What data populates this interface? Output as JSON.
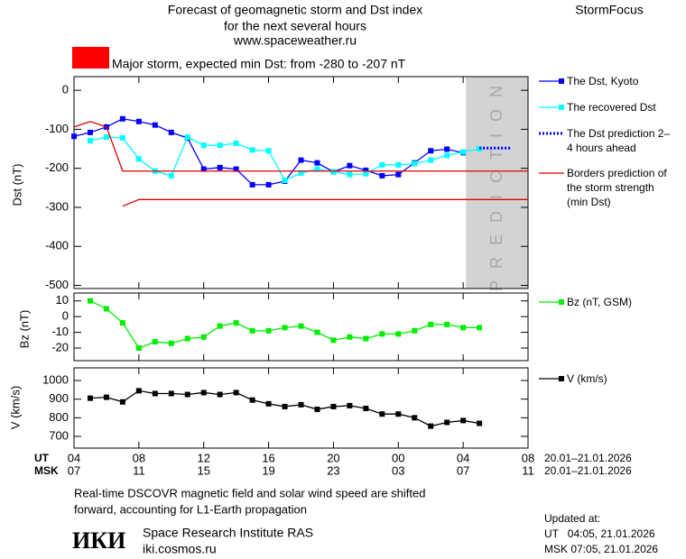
{
  "chart_data": [
    {
      "type": "line",
      "title": [
        "Forecast of geomagnetic storm and Dst index",
        "for the next several hours",
        "www.spaceweather.ru"
      ],
      "brand": "StormFocus",
      "annotation": "Major storm, expected min Dst: from -280 to -207 nT",
      "annotation_color": "#ff0000",
      "prediction_label": "PREDICTION",
      "y_label": "Dst (nT)",
      "ylim": [
        -508,
        35
      ],
      "yticks": [
        -500,
        -400,
        -300,
        -200,
        -100,
        0
      ],
      "series": [
        {
          "name": "The Dst, Kyoto",
          "color": "#0000ff",
          "marker": "square",
          "values": [
            -118,
            -108,
            -94,
            -73,
            -80,
            -89,
            -108,
            -122,
            -202,
            -198,
            -202,
            -242,
            -242,
            -233,
            -179,
            -186,
            -209,
            -193,
            -205,
            -219,
            -216,
            -186,
            -155,
            -151,
            -160,
            null,
            null,
            null,
            null
          ]
        },
        {
          "name": "The recovered Dst",
          "color": "#00ffff",
          "marker": "square",
          "values": [
            null,
            -129,
            -120,
            -122,
            -176,
            -207,
            -219,
            -120,
            -141,
            -141,
            -136,
            -153,
            -155,
            -231,
            -212,
            -202,
            -209,
            -216,
            -214,
            -191,
            -191,
            -188,
            -179,
            -167,
            -158,
            -150,
            null,
            null,
            null
          ]
        },
        {
          "name": "The Dst prediction 2–4 hours ahead",
          "color": "#0000ff",
          "line_style": "dotted",
          "values": [
            null,
            null,
            null,
            null,
            null,
            null,
            null,
            null,
            null,
            null,
            null,
            null,
            null,
            null,
            null,
            null,
            null,
            null,
            null,
            null,
            null,
            null,
            null,
            null,
            null,
            -148,
            -148,
            -148,
            null
          ]
        },
        {
          "name": "Borders prediction of the storm strength (min Dst)",
          "color": "#e00000",
          "values": [
            -94,
            -80,
            -94,
            -207,
            -207,
            -207,
            -207,
            -207,
            -207,
            -207,
            -207,
            -207,
            -207,
            -207,
            -207,
            -207,
            -207,
            -207,
            -207,
            -207,
            -207,
            -207,
            -207,
            -207,
            -207,
            -207,
            -207,
            -207,
            -207
          ]
        },
        {
          "color": "#e00000",
          "values": [
            null,
            null,
            null,
            -297,
            -280,
            -280,
            -280,
            -280,
            -280,
            -280,
            -280,
            -280,
            -280,
            -280,
            -280,
            -280,
            -280,
            -280,
            -280,
            -280,
            -280,
            -280,
            -280,
            -280,
            -280,
            -280,
            -280,
            -280,
            -280
          ]
        }
      ]
    },
    {
      "type": "line",
      "y_label": "Bz (nT)",
      "ylim": [
        -28,
        15
      ],
      "yticks": [
        -20,
        -10,
        0,
        10
      ],
      "series": [
        {
          "name": "Bz (nT, GSM)",
          "color": "#00ee00",
          "marker": "square",
          "values": [
            null,
            10,
            5,
            -4,
            -20,
            -16,
            -17,
            -14,
            -13,
            -6,
            -4,
            -9,
            -9,
            -7,
            -6,
            -10,
            -15,
            -13,
            -14,
            -11,
            -11,
            -9,
            -5,
            -5,
            -7,
            -7,
            null,
            null,
            null
          ]
        }
      ]
    },
    {
      "type": "line",
      "y_label": "V (km/s)",
      "ylim": [
        637,
        1068
      ],
      "yticks": [
        700,
        800,
        900,
        1000
      ],
      "series": [
        {
          "name": "V (km/s)",
          "color": "#000000",
          "marker": "square",
          "values": [
            null,
            905,
            910,
            885,
            945,
            930,
            930,
            925,
            935,
            925,
            935,
            895,
            875,
            860,
            870,
            845,
            860,
            865,
            850,
            820,
            820,
            800,
            755,
            775,
            785,
            770,
            null,
            null,
            null
          ]
        }
      ],
      "x_label": "UT",
      "x2_label": "MSK",
      "categories": [
        "04",
        null,
        null,
        null,
        "08",
        null,
        null,
        null,
        "12",
        null,
        null,
        null,
        "16",
        null,
        null,
        null,
        "20",
        null,
        null,
        null,
        "00",
        null,
        null,
        null,
        "04",
        null,
        null,
        null,
        "08"
      ],
      "x2_categories": [
        "07",
        null,
        null,
        null,
        "11",
        null,
        null,
        null,
        "15",
        null,
        null,
        null,
        "19",
        null,
        null,
        null,
        "23",
        null,
        null,
        null,
        "03",
        null,
        null,
        null,
        "07",
        null,
        null,
        null,
        "11"
      ],
      "x_date_range": "20.01–21.01.2026",
      "x2_date_range": "20.01–21.01.2026"
    }
  ],
  "footer": {
    "note": [
      "Real-time DSCOVR magnetic field and solar wind speed are shifted",
      "forward, accounting for L1-Earth propagation"
    ],
    "logo": "ИКИ",
    "institute": "Space Research Institute RAS",
    "url": "iki.cosmos.ru",
    "updated": [
      "Updated at:",
      "UT   04:05, 21.01.2026",
      "MSK 07:05, 21.01.2026"
    ]
  }
}
